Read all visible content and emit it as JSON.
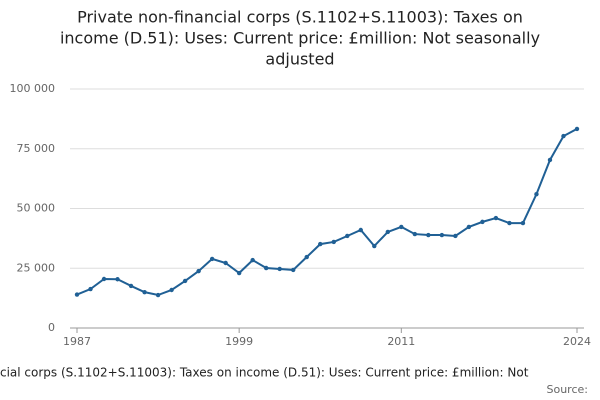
{
  "chart_data": {
    "type": "line",
    "title": [
      "Private non-financial corps (S.1102+S.11003): Taxes on",
      "income (D.51): Uses: Current price: £million: Not seasonally",
      "adjusted"
    ],
    "x_label": "cial corps (S.1102+S.11003): Taxes on income (D.51): Uses: Current price: £million: Not",
    "source": "Source:",
    "x": [
      1987,
      1988,
      1989,
      1990,
      1991,
      1992,
      1993,
      1994,
      1995,
      1996,
      1997,
      1998,
      1999,
      2000,
      2001,
      2002,
      2003,
      2004,
      2005,
      2006,
      2007,
      2008,
      2009,
      2010,
      2011,
      2012,
      2013,
      2014,
      2015,
      2016,
      2017,
      2018,
      2019,
      2020,
      2021,
      2022,
      2023,
      2024
    ],
    "series": [
      {
        "color": "#206095",
        "values": [
          14000,
          16300,
          20500,
          20400,
          17600,
          15000,
          13800,
          15900,
          19700,
          23800,
          28900,
          27200,
          23000,
          28400,
          25100,
          24700,
          24300,
          29700,
          35100,
          36000,
          38500,
          41000,
          34300,
          40200,
          42300,
          39300,
          38900,
          38900,
          38500,
          42300,
          44400,
          46000,
          43900,
          43900,
          56000,
          70300,
          80300,
          83300
        ]
      }
    ],
    "xlim": [
      1987,
      2024
    ],
    "xticks": [
      1987,
      1999,
      2011,
      2024
    ],
    "ylim": [
      0,
      100000
    ],
    "yticks": [
      0,
      {
        "value": 25000,
        "label": "25 000"
      },
      {
        "value": 50000,
        "label": "50 000"
      },
      {
        "value": 75000,
        "label": "75 000"
      },
      {
        "value": 100000,
        "label": "100 000"
      }
    ],
    "grid": true
  }
}
